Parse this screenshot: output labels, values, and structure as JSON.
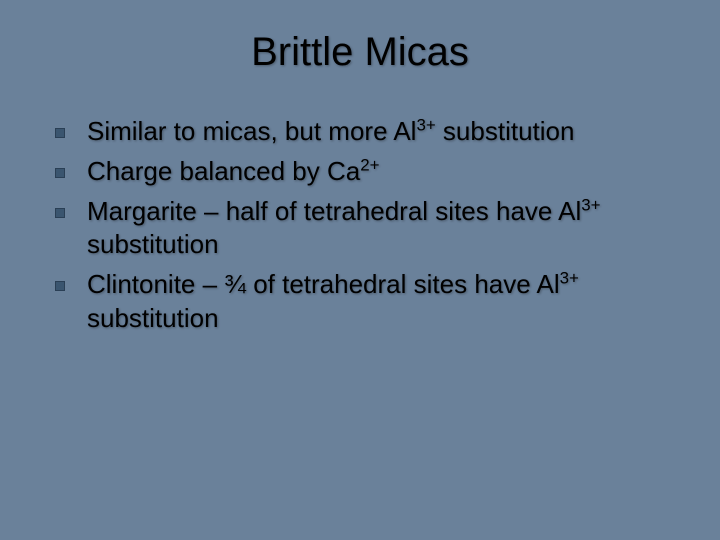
{
  "slide": {
    "title": "Brittle Micas",
    "background_color": "#6a819a",
    "title_color": "#000000",
    "title_fontsize": 40,
    "body_color": "#000000",
    "body_fontsize": 26,
    "bullet_marker_color": "#3a556f",
    "bullets": [
      {
        "pre": "Similar to micas, but more Al",
        "sup": "3+",
        "post": " substitution"
      },
      {
        "pre": "Charge balanced by Ca",
        "sup": "2+",
        "post": ""
      },
      {
        "pre": "Margarite – half of tetrahedral sites have Al",
        "sup": "3+",
        "post": " substitution"
      },
      {
        "pre": "Clintonite – ¾ of tetrahedral sites have Al",
        "sup": "3+",
        "post": " substitution"
      }
    ]
  }
}
